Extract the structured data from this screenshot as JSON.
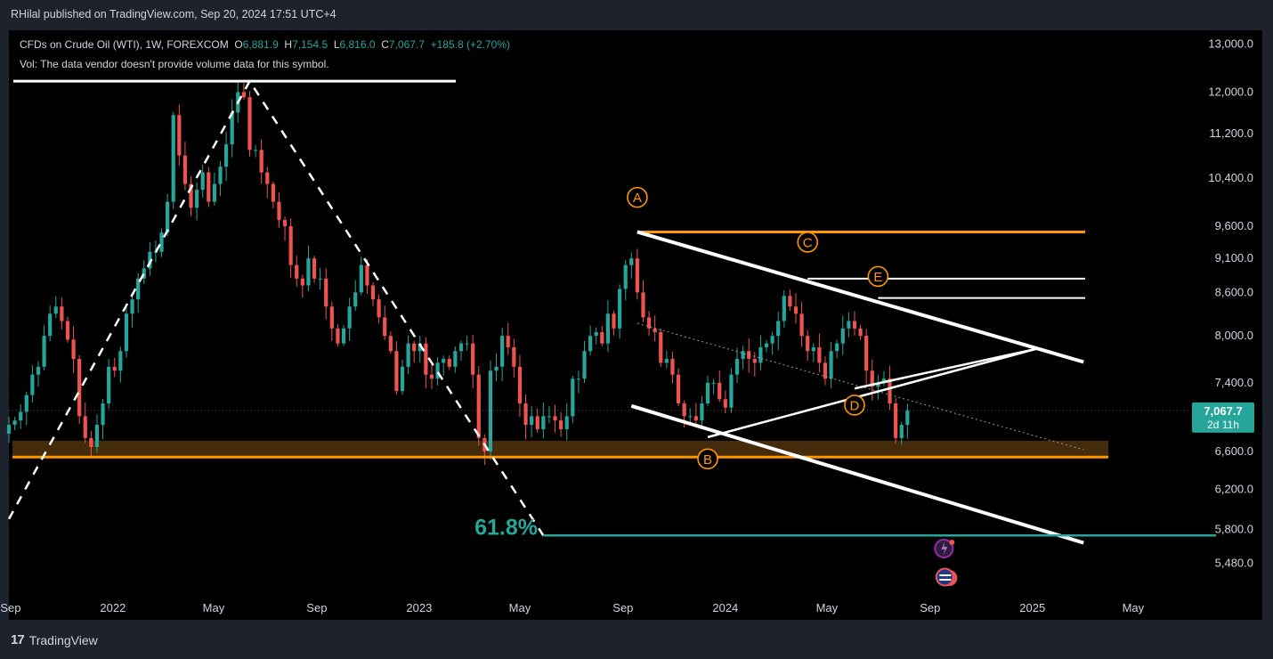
{
  "header": {
    "publisher": "RHilal published on TradingView.com, Sep 20, 2024 17:51 UTC+4"
  },
  "legend": {
    "symbol": "CFDs on Crude Oil (WTI), 1W, FOREXCOM",
    "o_label": "O",
    "o_value": "6,881.9",
    "h_label": "H",
    "h_value": "7,154.5",
    "l_label": "L",
    "l_value": "6,816.0",
    "c_label": "C",
    "c_value": "7,067.7",
    "change": "+185.8 (+2.70%)",
    "vol_note": "Vol: The data vendor doesn't provide volume data for this symbol."
  },
  "footer": {
    "brand": "TradingView",
    "logo_text": "17"
  },
  "colors": {
    "up": "#26a69a",
    "down": "#ef5350",
    "orange": "#ff9800",
    "white": "#ffffff",
    "teal_line": "#26a69a",
    "support_zone": "#5a3a10"
  },
  "chart_data": {
    "type": "candlestick",
    "interval": "1W",
    "y_axis_scale": "log",
    "ylim": [
      5200,
      13300
    ],
    "x_range": [
      "2021-08-30",
      "2025-07-07"
    ],
    "y_tick_labels": [
      "13,000.0",
      "12,000.0",
      "11,200.0",
      "10,400.0",
      "9,600.0",
      "9,100.0",
      "8,600.0",
      "8,000.0",
      "7,400.0",
      "6,600.0",
      "6,200.0",
      "5,800.0",
      "5,480.0"
    ],
    "y_tick_values": [
      13000,
      12000,
      11200,
      10400,
      9600,
      9100,
      8600,
      8000,
      7400,
      6600,
      6200,
      5800,
      5480
    ],
    "x_tick_labels": [
      "Sep",
      "2022",
      "May",
      "Sep",
      "2023",
      "May",
      "Sep",
      "2024",
      "May",
      "Sep",
      "2025",
      "May"
    ],
    "x_tick_dates": [
      "2021-09-01",
      "2022-01-01",
      "2022-05-01",
      "2022-09-01",
      "2023-01-01",
      "2023-05-01",
      "2023-09-01",
      "2024-01-01",
      "2024-05-01",
      "2024-09-01",
      "2025-01-01",
      "2025-05-01"
    ],
    "last_price": {
      "value": 7067.7,
      "label": "7,067.7",
      "countdown": "2d 11h"
    },
    "closes": [
      6900,
      6950,
      7050,
      7250,
      7500,
      7600,
      8000,
      8300,
      8400,
      8200,
      7950,
      7700,
      7000,
      6750,
      6650,
      6900,
      7150,
      7600,
      7550,
      7800,
      8300,
      8500,
      8800,
      8950,
      9200,
      9200,
      9500,
      10000,
      11550,
      10800,
      10300,
      9900,
      10200,
      10500,
      10000,
      10300,
      10600,
      11000,
      11600,
      12000,
      11900,
      10900,
      10900,
      10500,
      10300,
      10000,
      9700,
      9600,
      9000,
      8800,
      8700,
      9100,
      8800,
      8800,
      8400,
      8100,
      7900,
      8100,
      8400,
      8600,
      9000,
      8700,
      8500,
      8250,
      8000,
      7800,
      7300,
      7600,
      7900,
      7800,
      7900,
      7500,
      7450,
      7650,
      7700,
      7600,
      7800,
      7900,
      7900,
      7500,
      6750,
      6600,
      7550,
      7600,
      8000,
      7850,
      7600,
      7150,
      6900,
      7000,
      6850,
      7000,
      7000,
      6950,
      6850,
      7000,
      7450,
      7450,
      7800,
      8000,
      8050,
      7900,
      8300,
      8100,
      8650,
      9000,
      9100,
      8600,
      8250,
      8100,
      8050,
      7650,
      7700,
      7500,
      7150,
      7000,
      7000,
      6950,
      7150,
      7400,
      7400,
      7200,
      7100,
      7500,
      7700,
      7800,
      7700,
      7650,
      7850,
      7900,
      8000,
      8200,
      8550,
      8400,
      8300,
      8000,
      7800,
      7850,
      7650,
      7450,
      7800,
      7900,
      8100,
      8200,
      8100,
      8000,
      7550,
      7350,
      7400,
      7450,
      7150,
      6750,
      6900,
      7068
    ]
  },
  "annotations": {
    "fib_label": "61.8%",
    "fib_level": 5740,
    "points": [
      {
        "label": "A",
        "date": "2023-09-18",
        "price": 9750
      },
      {
        "label": "B",
        "date": "2023-12-11",
        "price": 6520
      },
      {
        "label": "C",
        "date": "2024-04-08",
        "price": 9050
      },
      {
        "label": "D",
        "date": "2024-06-03",
        "price": 7130
      },
      {
        "label": "E",
        "date": "2024-07-01",
        "price": 8650
      }
    ],
    "orange_levels": [
      6540,
      9510
    ],
    "white_levels": [
      8800,
      8520
    ],
    "support_zone": [
      6540,
      6720
    ]
  }
}
